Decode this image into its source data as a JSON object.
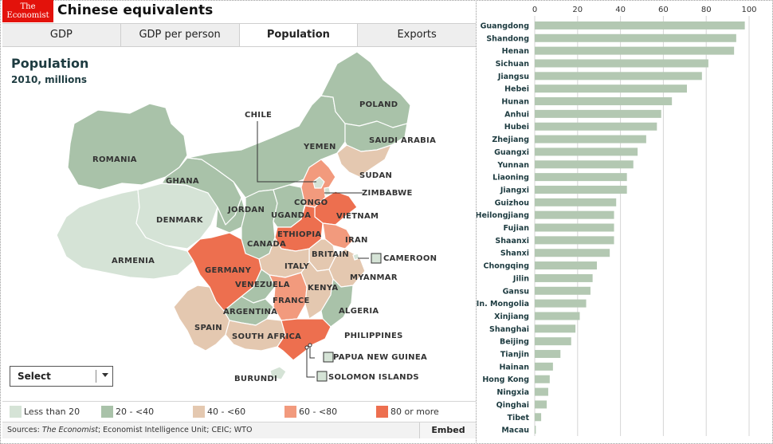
{
  "app": {
    "logo_line1": "The",
    "logo_line2": "Economist",
    "title": "Chinese equivalents"
  },
  "tabs": [
    {
      "label": "GDP",
      "active": false
    },
    {
      "label": "GDP per person",
      "active": false
    },
    {
      "label": "Population",
      "active": true
    },
    {
      "label": "Exports",
      "active": false
    }
  ],
  "map": {
    "title": "Population",
    "subtitle": "2010, millions",
    "labels": {
      "romania": "ROMANIA",
      "ghana": "GHANA",
      "denmark": "DENMARK",
      "armenia": "ARMENIA",
      "jordan": "JORDAN",
      "canada": "CANADA",
      "uganda": "UGANDA",
      "congo": "CONGO",
      "ethiopia": "ETHIOPIA",
      "germany": "GERMANY",
      "venezuela": "VENEZUELA",
      "argentina": "ARGENTINA",
      "spain": "SPAIN",
      "south_africa": "SOUTH AFRICA",
      "italy": "ITALY",
      "france": "FRANCE",
      "kenya": "KENYA",
      "britain": "BRITAIN",
      "vietnam": "VIETNAM",
      "iran": "IRAN",
      "myanmar": "MYANMAR",
      "algeria": "ALGERIA",
      "philippines": "PHILIPPINES",
      "burundi": "BURUNDI",
      "chile": "CHILE",
      "yemen": "YEMEN",
      "poland": "POLAND",
      "saudi_arabia": "SAUDI ARABIA",
      "sudan": "SUDAN",
      "zimbabwe": "ZIMBABWE",
      "cameroon": "CAMEROON",
      "papua_new_guinea": "PAPUA NEW GUINEA",
      "solomon_islands": "SOLOMON ISLANDS"
    }
  },
  "select": {
    "label": "Select"
  },
  "legend": [
    {
      "label": "Less than 20",
      "color": "#d5e3d6"
    },
    {
      "label": "20 - <40",
      "color": "#a9c2a9"
    },
    {
      "label": "40 - <60",
      "color": "#e4c8b0"
    },
    {
      "label": "60 - <80",
      "color": "#f29a7d"
    },
    {
      "label": "80 or more",
      "color": "#ed6f4f"
    }
  ],
  "footer": {
    "sources_prefix": "Sources: ",
    "sources_italic": "The Economist",
    "sources_rest": "; Economist Intelligence Unit; CEIC; WTO",
    "embed_label": "Embed"
  },
  "chart_data": {
    "type": "bar",
    "orientation": "horizontal",
    "categories": [
      "Guangdong",
      "Shandong",
      "Henan",
      "Sichuan",
      "Jiangsu",
      "Hebei",
      "Hunan",
      "Anhui",
      "Hubei",
      "Zhejiang",
      "Guangxi",
      "Yunnan",
      "Liaoning",
      "Jiangxi",
      "Guizhou",
      "Heilongjiang",
      "Fujian",
      "Shaanxi",
      "Shanxi",
      "Chongqing",
      "Jilin",
      "Gansu",
      "In. Mongolia",
      "Xinjiang",
      "Shanghai",
      "Beijing",
      "Tianjin",
      "Hainan",
      "Hong Kong",
      "Ningxia",
      "Qinghai",
      "Tibet",
      "Macau"
    ],
    "values": [
      98,
      94,
      93,
      81,
      78,
      71,
      64,
      59,
      57,
      52,
      48,
      46,
      43,
      43,
      38,
      37,
      37,
      37,
      35,
      29,
      27,
      26,
      24,
      21,
      19,
      17,
      12,
      8.5,
      7,
      6.3,
      5.6,
      3,
      0.5
    ],
    "xlim": [
      0,
      100
    ],
    "xticks": [
      0,
      20,
      40,
      60,
      80,
      100
    ],
    "bar_color": "#b3c8b2",
    "grid": true
  }
}
